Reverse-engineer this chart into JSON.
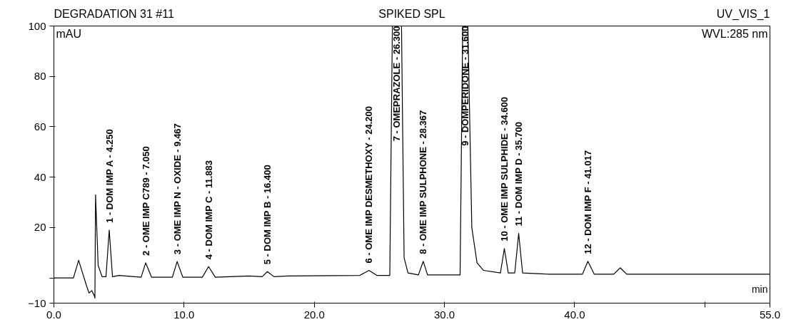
{
  "chart_data": {
    "type": "line",
    "title": "DEGRADATION 31 #11",
    "subtitle": "SPIKED SPL",
    "xlabel": "min",
    "ylabel": "mAU",
    "xlim": [
      0,
      55
    ],
    "ylim": [
      -10,
      100
    ],
    "xticks": [
      {
        "value": 0,
        "label": "0.0"
      },
      {
        "value": 10,
        "label": "10.0"
      },
      {
        "value": 20,
        "label": "20.0"
      },
      {
        "value": 30,
        "label": "30.0"
      },
      {
        "value": 40,
        "label": "40.0"
      },
      {
        "value": 50,
        "label": null
      },
      {
        "value": 55,
        "label": "55.0"
      }
    ],
    "yticks": [
      -10,
      {
        "value": 0,
        "label": null
      },
      20,
      40,
      60,
      80,
      100
    ],
    "grid": false,
    "marker": "none",
    "line_style": "solid",
    "series": [
      {
        "color": "#000000",
        "x": [
          0,
          1.5,
          1.9,
          2.2,
          2.5,
          2.7,
          2.9,
          3.1,
          3.15,
          3.2,
          3.4,
          3.7,
          4.0,
          4.25,
          4.5,
          5.0,
          6.7,
          7.05,
          7.5,
          9.1,
          9.467,
          9.9,
          11.4,
          11.883,
          12.4,
          15,
          16.0,
          16.4,
          16.9,
          18,
          23.5,
          24.2,
          24.8,
          25.8,
          26.0,
          26.7,
          26.9,
          27.2,
          28.0,
          28.367,
          28.7,
          31.2,
          31.4,
          31.8,
          32.1,
          32.5,
          33.0,
          34.3,
          34.6,
          34.9,
          35.4,
          35.7,
          36.0,
          38,
          40.6,
          41.017,
          41.5,
          43.0,
          43.5,
          44.0,
          55
        ],
        "values": [
          0,
          0,
          7,
          2,
          -3,
          -6,
          -5,
          -7,
          -8,
          33,
          5,
          0.5,
          0.5,
          19,
          0.5,
          1,
          0.3,
          6,
          0.3,
          0.3,
          6.5,
          0.3,
          0.3,
          4.5,
          0.3,
          0.8,
          0.5,
          2.5,
          0.5,
          0.8,
          1,
          3,
          1,
          1,
          100,
          100,
          8,
          2,
          1.2,
          6.6,
          1.2,
          1.2,
          100,
          100,
          20,
          6,
          3,
          2,
          11.7,
          2,
          2,
          17.7,
          2,
          1.5,
          1.5,
          6.6,
          1.5,
          1.5,
          4,
          1.5,
          1.5
        ]
      }
    ],
    "annotations": [
      {
        "text": "1 - DOM IMP A - 4.250",
        "x": 4.25,
        "y": 19
      },
      {
        "text": "2 - OME IMP C789 - 7.050",
        "x": 7.05,
        "y": 6
      },
      {
        "text": "3 - OME IMP N - OXIDE - 9.467",
        "x": 9.467,
        "y": 6.5
      },
      {
        "text": "4 - DOM IMP C - 11.883",
        "x": 11.883,
        "y": 4.5
      },
      {
        "text": "5 - DOM IMP B - 16.400",
        "x": 16.4,
        "y": 2.5
      },
      {
        "text": "6 - OME IMP DESMETHOXY - 24.200",
        "x": 24.2,
        "y": 3
      },
      {
        "text": "7 - OMEPRAZOLE - 26.300",
        "x": 26.3,
        "y": 100
      },
      {
        "text": "8 - OME IMP SULPHONE - 28.367",
        "x": 28.367,
        "y": 6.6
      },
      {
        "text": "9 - DOMPERIDONE - 31.600",
        "x": 31.6,
        "y": 100
      },
      {
        "text": "10 - OME IMP SULPHIDE - 34.600",
        "x": 34.6,
        "y": 11.7
      },
      {
        "text": "11 - DOM IMP D - 35.700",
        "x": 35.7,
        "y": 17.7
      },
      {
        "text": "12 - DOM IMP F - 41.017",
        "x": 41.017,
        "y": 6.6
      },
      "UV_VIS_1",
      "WVL:285 nm"
    ]
  }
}
